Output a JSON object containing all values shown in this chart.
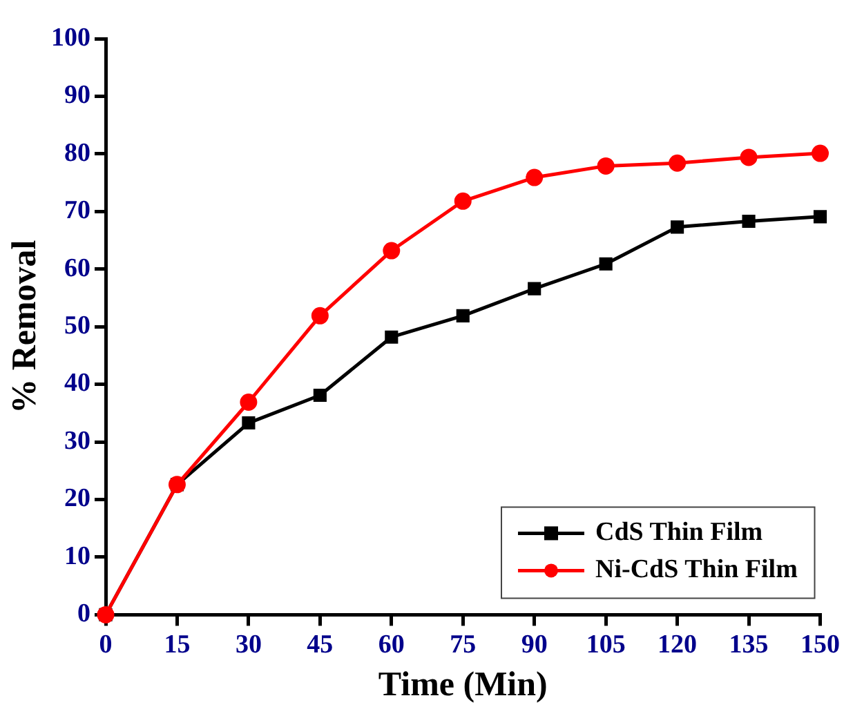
{
  "chart_data": {
    "type": "line",
    "xlabel": "Time (Min)",
    "ylabel": "% Removal",
    "x": [
      0,
      15,
      30,
      45,
      60,
      75,
      90,
      105,
      120,
      135,
      150
    ],
    "series": [
      {
        "name": "CdS Thin Film",
        "color": "#000000",
        "marker": "square",
        "values": [
          0,
          22.6,
          33.3,
          38.1,
          48.2,
          51.9,
          56.6,
          60.9,
          67.3,
          68.3,
          69.1
        ]
      },
      {
        "name": "Ni-CdS Thin Film",
        "color": "#ff0000",
        "marker": "circle",
        "values": [
          0,
          22.6,
          36.9,
          51.9,
          63.2,
          71.8,
          75.9,
          77.9,
          78.4,
          79.4,
          80.1
        ]
      }
    ],
    "xlim": [
      0,
      150
    ],
    "xticks": [
      0,
      15,
      30,
      45,
      60,
      75,
      90,
      105,
      120,
      135,
      150
    ],
    "ylim": [
      0,
      100
    ],
    "yticks": [
      0,
      10,
      20,
      30,
      40,
      50,
      60,
      70,
      80,
      90,
      100
    ],
    "grid": false,
    "legend": "bottom right",
    "line_style": "solid"
  }
}
